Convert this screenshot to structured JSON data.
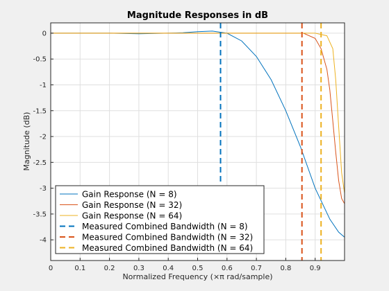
{
  "chart_data": {
    "type": "line",
    "title": "Magnitude Responses in dB",
    "xlabel": "Normalized Frequency (×π rad/sample)",
    "ylabel": "Magnitude (dB)",
    "xlim": [
      0,
      1
    ],
    "ylim": [
      -4.4,
      0.2
    ],
    "grid": true,
    "legend_position": "bottom-left",
    "xticks": [
      0,
      0.1,
      0.2,
      0.3,
      0.4,
      0.5,
      0.6,
      0.7,
      0.8,
      0.9
    ],
    "yticks": [
      0,
      -0.5,
      -1,
      -1.5,
      -2,
      -2.5,
      -3,
      -3.5,
      -4
    ],
    "series": [
      {
        "name": "Gain Response (N = 8)",
        "color": "#0072bd",
        "style": "solid",
        "x": [
          0,
          0.1,
          0.2,
          0.3,
          0.4,
          0.45,
          0.5,
          0.55,
          0.6,
          0.65,
          0.7,
          0.75,
          0.8,
          0.85,
          0.9,
          0.95,
          0.98,
          1.0
        ],
        "y": [
          0,
          0,
          0,
          -0.01,
          0,
          0.01,
          0.03,
          0.04,
          0.0,
          -0.15,
          -0.45,
          -0.9,
          -1.5,
          -2.2,
          -3.0,
          -3.6,
          -3.85,
          -3.95
        ]
      },
      {
        "name": "Gain Response (N = 32)",
        "color": "#d95319",
        "style": "solid",
        "x": [
          0,
          0.2,
          0.4,
          0.6,
          0.8,
          0.86,
          0.9,
          0.92,
          0.94,
          0.95,
          0.96,
          0.97,
          0.98,
          0.99,
          1.0
        ],
        "y": [
          0,
          0,
          0,
          0,
          0,
          0,
          -0.1,
          -0.3,
          -0.7,
          -1.1,
          -1.7,
          -2.3,
          -2.85,
          -3.2,
          -3.3
        ]
      },
      {
        "name": "Gain Response (N = 64)",
        "color": "#edb120",
        "style": "solid",
        "x": [
          0,
          0.2,
          0.4,
          0.6,
          0.8,
          0.9,
          0.94,
          0.96,
          0.97,
          0.98,
          0.99,
          1.0
        ],
        "y": [
          0,
          0,
          0,
          0,
          0,
          0,
          -0.05,
          -0.3,
          -0.9,
          -1.8,
          -2.7,
          -3.1
        ]
      },
      {
        "name": "Measured Combined Bandwidth (N = 8)",
        "color": "#0072bd",
        "style": "dashed",
        "x": [
          0.578,
          0.578
        ],
        "y": [
          0.2,
          -2.9
        ]
      },
      {
        "name": "Measured Combined Bandwidth (N = 32)",
        "color": "#d95319",
        "style": "dashed",
        "x": [
          0.855,
          0.855
        ],
        "y": [
          0.2,
          -4.4
        ]
      },
      {
        "name": "Measured Combined Bandwidth (N = 64)",
        "color": "#edb120",
        "style": "dashed",
        "x": [
          0.92,
          0.92
        ],
        "y": [
          0.2,
          -4.4
        ]
      }
    ]
  }
}
